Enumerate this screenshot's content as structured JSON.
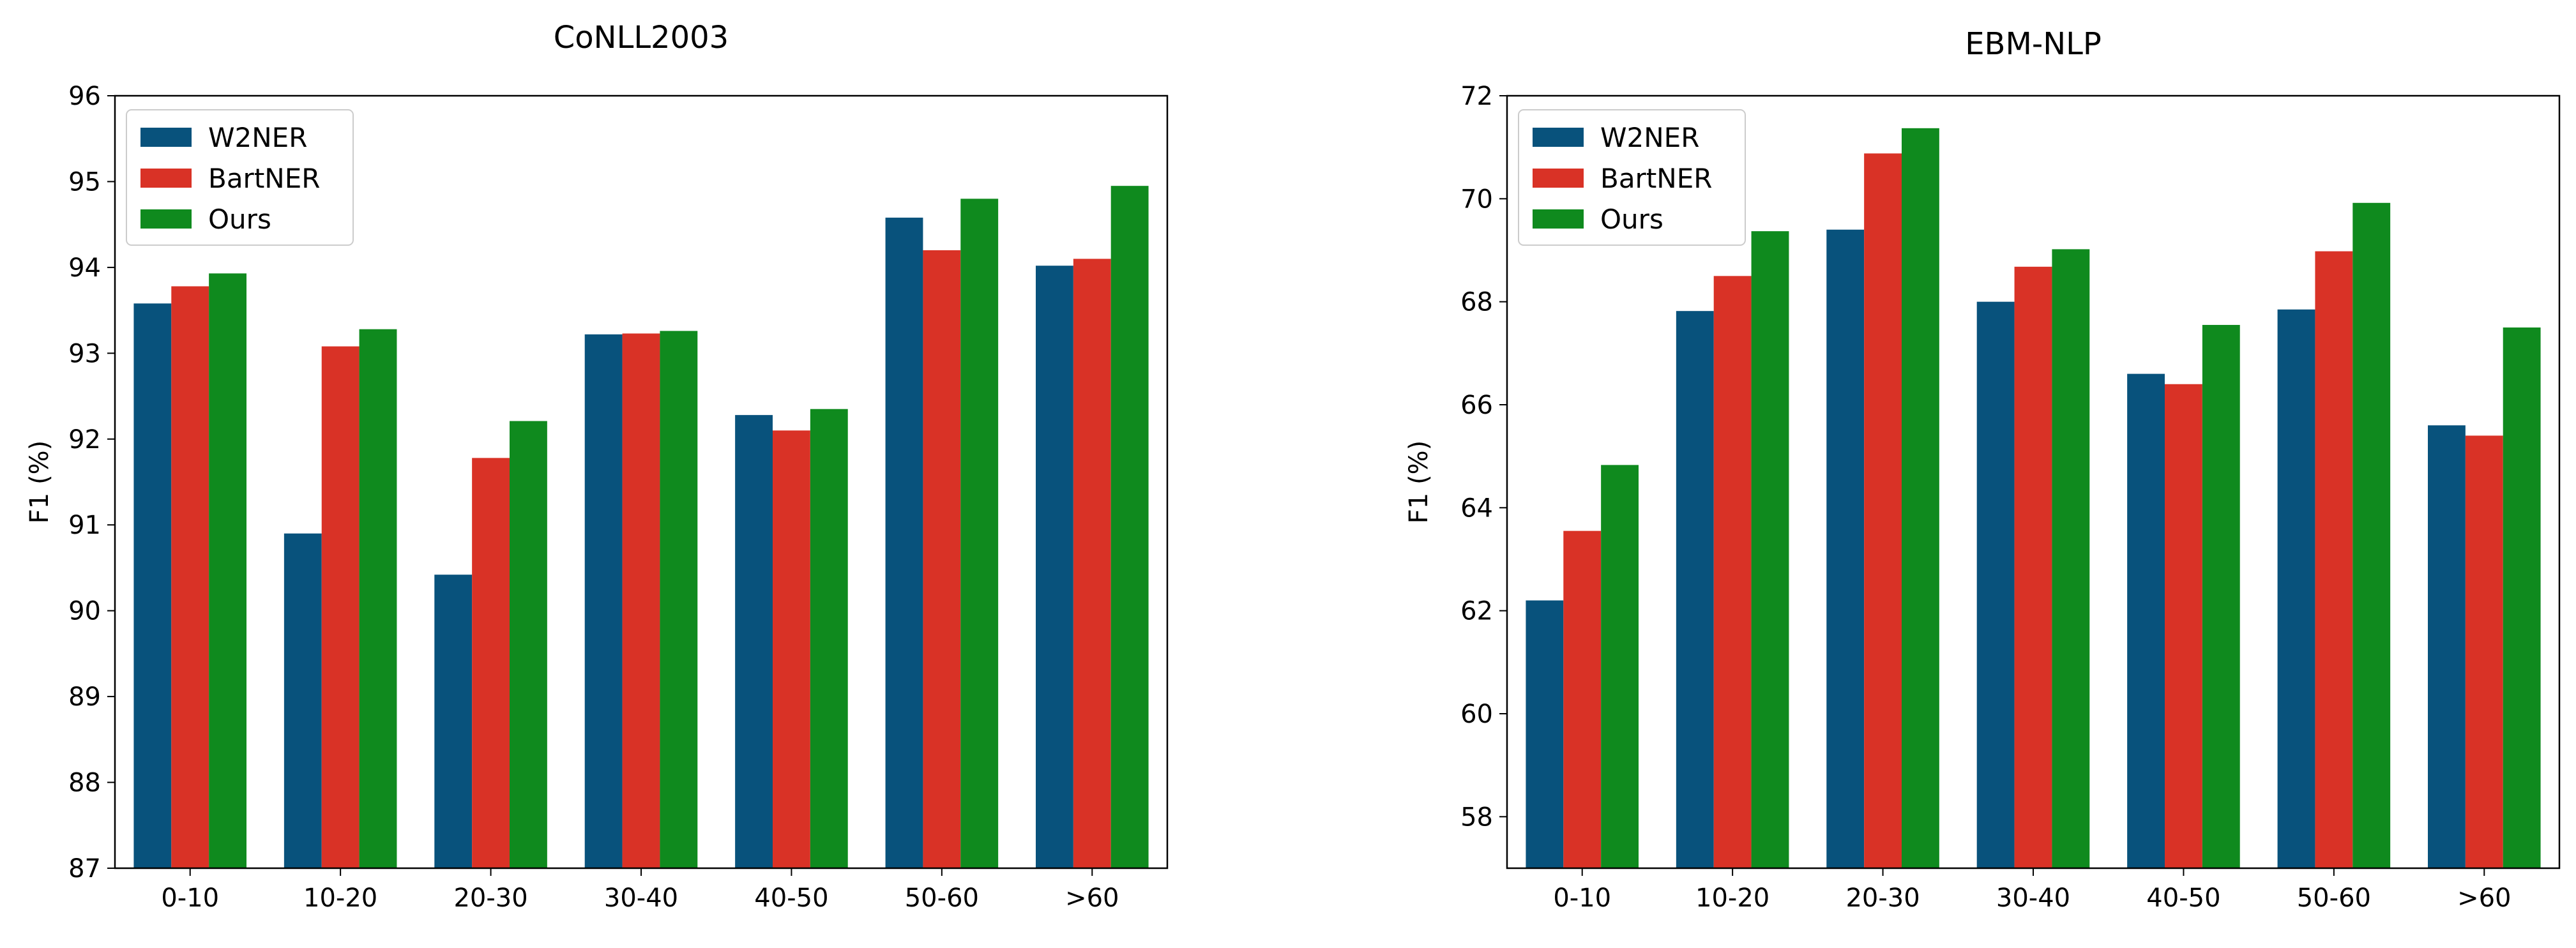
{
  "chart_data": [
    {
      "type": "bar",
      "title": "CoNLL2003",
      "xlabel": "",
      "ylabel": "F1 (%)",
      "categories": [
        "0-10",
        "10-20",
        "20-30",
        "30-40",
        "40-50",
        "50-60",
        ">60"
      ],
      "ylim": [
        87,
        96
      ],
      "yticks": [
        87,
        88,
        89,
        90,
        91,
        92,
        93,
        94,
        95,
        96
      ],
      "legend_position": "top-left",
      "series": [
        {
          "name": "W2NER",
          "color": "#08527C",
          "values": [
            93.58,
            90.9,
            90.42,
            93.22,
            92.28,
            94.58,
            94.02
          ]
        },
        {
          "name": "BartNER",
          "color": "#D93226",
          "values": [
            93.78,
            93.08,
            91.78,
            93.23,
            92.1,
            94.2,
            94.1
          ]
        },
        {
          "name": "Ours",
          "color": "#0F8A1E",
          "values": [
            93.93,
            93.28,
            92.21,
            93.26,
            92.35,
            94.8,
            94.95
          ]
        }
      ]
    },
    {
      "type": "bar",
      "title": "EBM-NLP",
      "xlabel": "",
      "ylabel": "F1 (%)",
      "categories": [
        "0-10",
        "10-20",
        "20-30",
        "30-40",
        "40-50",
        "50-60",
        ">60"
      ],
      "ylim": [
        57,
        72
      ],
      "yticks": [
        58,
        60,
        62,
        64,
        66,
        68,
        70,
        72
      ],
      "legend_position": "top-left",
      "series": [
        {
          "name": "W2NER",
          "color": "#08527C",
          "values": [
            62.2,
            67.82,
            69.4,
            68.0,
            66.6,
            67.85,
            65.6
          ]
        },
        {
          "name": "BartNER",
          "color": "#D93226",
          "values": [
            63.55,
            68.5,
            70.88,
            68.68,
            66.4,
            68.98,
            65.4
          ]
        },
        {
          "name": "Ours",
          "color": "#0F8A1E",
          "values": [
            64.83,
            69.37,
            71.37,
            69.02,
            67.55,
            69.92,
            67.5
          ]
        }
      ]
    }
  ]
}
